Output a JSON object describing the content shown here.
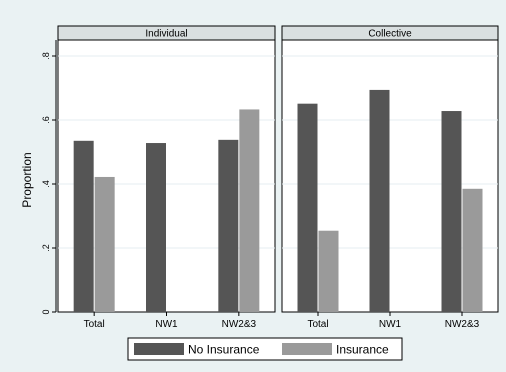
{
  "chart_data": {
    "type": "bar",
    "ylabel": "Proportion",
    "ylim": [
      0,
      0.85
    ],
    "yticks": [
      0,
      0.2,
      0.4,
      0.6,
      0.8
    ],
    "ytick_labels": [
      "0",
      ".2",
      ".4",
      ".6",
      ".8"
    ],
    "grid": true,
    "legend_position": "bottom",
    "series_meta": [
      {
        "name": "No Insurance",
        "color": "#555555"
      },
      {
        "name": "Insurance",
        "color": "#9a9a9a"
      }
    ],
    "panels": [
      {
        "title": "Individual",
        "categories": [
          "Total",
          "NW1",
          "NW2&3"
        ],
        "series": [
          {
            "name": "No Insurance",
            "values": [
              0.535,
              0.528,
              0.538
            ]
          },
          {
            "name": "Insurance",
            "values": [
              0.422,
              null,
              0.633
            ]
          }
        ]
      },
      {
        "title": "Collective",
        "categories": [
          "Total",
          "NW1",
          "NW2&3"
        ],
        "series": [
          {
            "name": "No Insurance",
            "values": [
              0.651,
              0.694,
              0.628
            ]
          },
          {
            "name": "Insurance",
            "values": [
              0.254,
              null,
              0.385
            ]
          }
        ]
      }
    ]
  }
}
